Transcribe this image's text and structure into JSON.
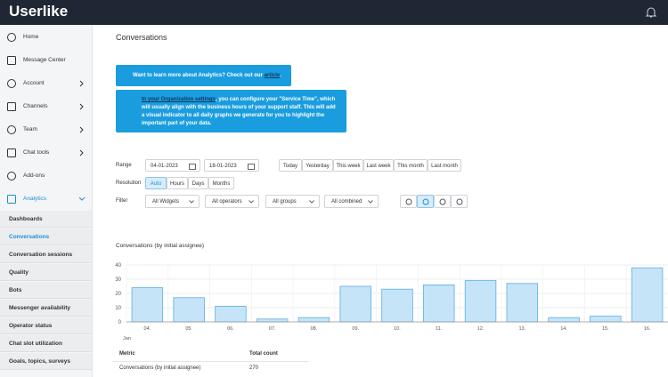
{
  "header": {
    "logo": "Userlike"
  },
  "sidebar": {
    "items": [
      {
        "label": "Home"
      },
      {
        "label": "Message Center"
      },
      {
        "label": "Account",
        "expand": "right"
      },
      {
        "label": "Channels",
        "expand": "right"
      },
      {
        "label": "Team",
        "expand": "right"
      },
      {
        "label": "Chat tools",
        "expand": "right"
      },
      {
        "label": "Add-ons"
      },
      {
        "label": "Analytics",
        "expand": "down",
        "active": true
      }
    ],
    "submenu": [
      {
        "label": "Dashboards"
      },
      {
        "label": "Conversations",
        "active": true
      },
      {
        "label": "Conversation sessions"
      },
      {
        "label": "Quality"
      },
      {
        "label": "Bots"
      },
      {
        "label": "Messenger availability"
      },
      {
        "label": "Operator status"
      },
      {
        "label": "Chat slot utilization"
      },
      {
        "label": "Goals, topics, surveys"
      }
    ]
  },
  "main": {
    "title": "Conversations",
    "banner1": {
      "text": "Want to learn more about Analytics? Check out our ",
      "link": "article",
      "end": "."
    },
    "banner2": {
      "link": "In your Organization settings",
      "text": ", you can configure your \"Service Time\", which will usually align with the business hours of your support staff. This will add a visual indicator to all daily graphs we generate for you to highlight the important part of your data."
    },
    "range": {
      "label": "Range",
      "from": "04-01-2023",
      "to": "18-01-2023",
      "presets": [
        "Today",
        "Yesterday",
        "This week",
        "Last week",
        "This month",
        "Last month"
      ]
    },
    "resolution": {
      "label": "Resolution",
      "options": [
        "Auto",
        "Hours",
        "Days",
        "Months"
      ],
      "active": 0
    },
    "filter": {
      "label": "Filter",
      "dropdowns": [
        "All Widgets",
        "All operators",
        "All groups",
        "All combined"
      ],
      "active_view": 1
    },
    "chart": {
      "type": "bar",
      "title": "Conversations (by initial assignee)",
      "categories": [
        "04.",
        "05.",
        "06.",
        "07.",
        "08.",
        "09.",
        "10.",
        "11.",
        "12.",
        "13.",
        "14.",
        "15.",
        "16."
      ],
      "values": [
        24,
        17,
        11,
        2,
        3,
        25,
        23,
        26,
        29,
        27,
        3,
        4,
        38
      ],
      "period": "Jan",
      "color": "#c6e4f7",
      "edge": "#5aaee4",
      "ylim": [
        0,
        40
      ],
      "yticks": [
        0,
        10,
        20,
        30,
        40
      ],
      "grid": true
    },
    "table": {
      "headers": [
        "Metric",
        "Total count"
      ],
      "rows": [
        [
          "Conversations (by initial assignee)",
          "270"
        ]
      ]
    }
  }
}
